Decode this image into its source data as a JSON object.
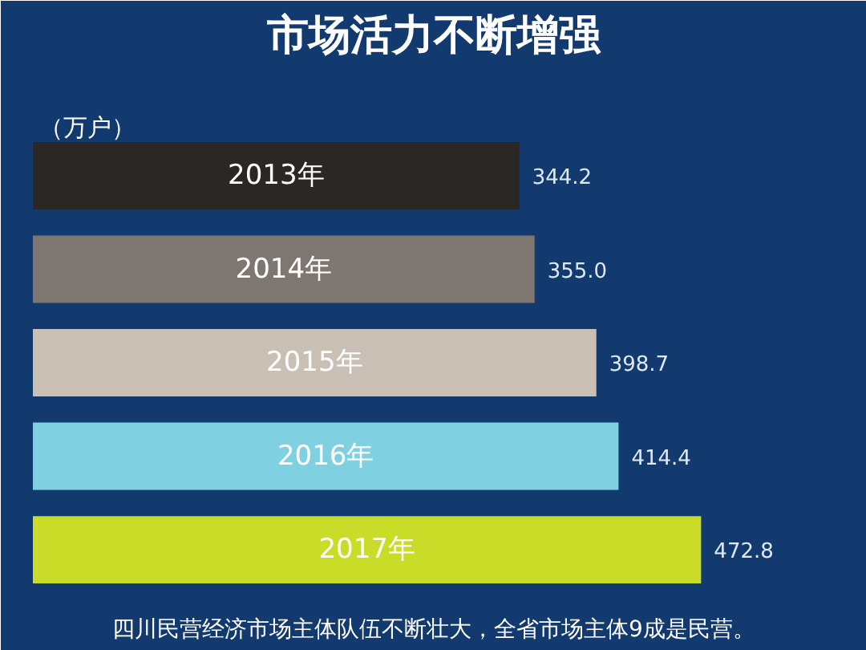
{
  "chart_data": {
    "type": "bar",
    "orientation": "horizontal",
    "title": "市场活力不断增强",
    "xlabel": "（万户）",
    "categories": [
      "2013年",
      "2014年",
      "2015年",
      "2016年",
      "2017年"
    ],
    "values": [
      344.2,
      355.0,
      398.7,
      414.4,
      472.8
    ],
    "value_labels": [
      "344.2",
      "355.0",
      "398.7",
      "414.4",
      "472.8"
    ],
    "colors": [
      "#2b2724",
      "#7e7670",
      "#c9bfb5",
      "#7fd0e0",
      "#c8dc28"
    ],
    "annotations": [
      "四川民营经济市场主体队伍不断壮大，全省市场主体9成是民营。"
    ]
  }
}
